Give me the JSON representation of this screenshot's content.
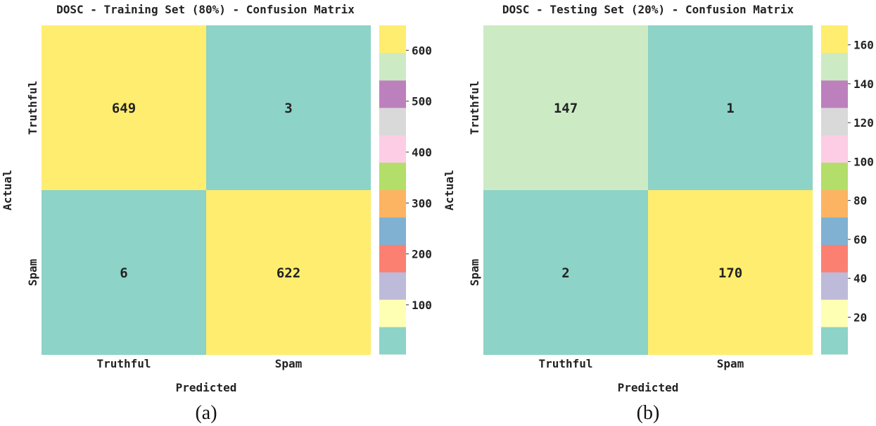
{
  "chart_data": [
    {
      "type": "heatmap",
      "title": "DOSC - Training Set (80%) - Confusion Matrix",
      "xlabel": "Predicted",
      "ylabel": "Actual",
      "x_categories": [
        "Truthful",
        "Spam"
      ],
      "y_categories": [
        "Truthful",
        "Spam"
      ],
      "values": [
        [
          649,
          3
        ],
        [
          6,
          622
        ]
      ],
      "colorbar": {
        "min": 3,
        "max": 649,
        "ticks": [
          100,
          200,
          300,
          400,
          500,
          600
        ]
      },
      "caption": "(a)"
    },
    {
      "type": "heatmap",
      "title": "DOSC - Testing Set (20%) - Confusion Matrix",
      "xlabel": "Predicted",
      "ylabel": "Actual",
      "x_categories": [
        "Truthful",
        "Spam"
      ],
      "y_categories": [
        "Truthful",
        "Spam"
      ],
      "values": [
        [
          147,
          1
        ],
        [
          2,
          170
        ]
      ],
      "colorbar": {
        "min": 1,
        "max": 170,
        "ticks": [
          20,
          40,
          60,
          80,
          100,
          120,
          140,
          160
        ]
      },
      "caption": "(b)"
    }
  ],
  "colormap": [
    "#8dd3c7",
    "#ffffb3",
    "#bebada",
    "#fb8072",
    "#80b1d3",
    "#fdb462",
    "#b3de69",
    "#fccde5",
    "#d9d9d9",
    "#bc80bd",
    "#ccebc5",
    "#ffed6f"
  ]
}
